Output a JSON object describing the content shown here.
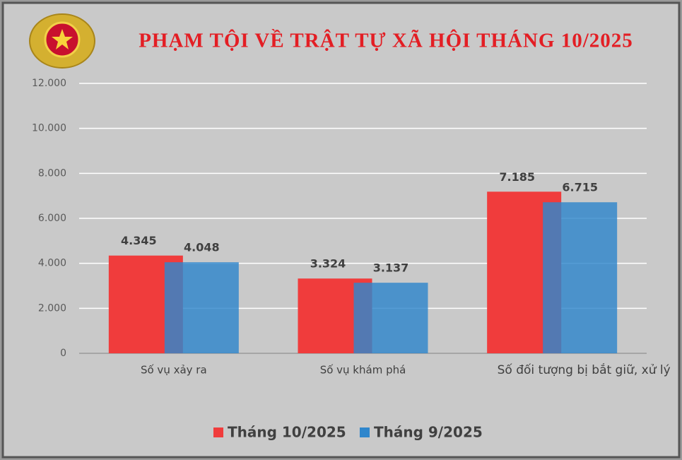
{
  "chart_data": {
    "type": "bar",
    "title": "PHẠM TỘI VỀ TRẬT TỰ XÃ HỘI THÁNG 10/2025",
    "categories": [
      "Số vụ xảy ra",
      "Số vụ khám phá",
      "Số đối tượng bị bắt giữ, xử lý"
    ],
    "series": [
      {
        "name": "Tháng 10/2025",
        "color": "#f03c3c",
        "values": [
          4345,
          3324,
          7185
        ],
        "value_labels": [
          "4.345",
          "3.324",
          "7.185"
        ]
      },
      {
        "name": "Tháng 9/2025",
        "color": "#2f86cc",
        "values": [
          4048,
          3137,
          6715
        ],
        "value_labels": [
          "4.048",
          "3.137",
          "6.715"
        ]
      }
    ],
    "ylim": [
      0,
      12000
    ],
    "yticks": [
      0,
      {
        "value": 2000,
        "label": "2.000"
      },
      {
        "value": 4000,
        "label": "4.000"
      },
      {
        "value": 6000,
        "label": "6.000"
      },
      {
        "value": 8000,
        "label": "8.000"
      },
      {
        "value": 10000,
        "label": "10.000"
      },
      {
        "value": 12000,
        "label": "12.000"
      }
    ],
    "grid": true,
    "legend": "bottom"
  }
}
